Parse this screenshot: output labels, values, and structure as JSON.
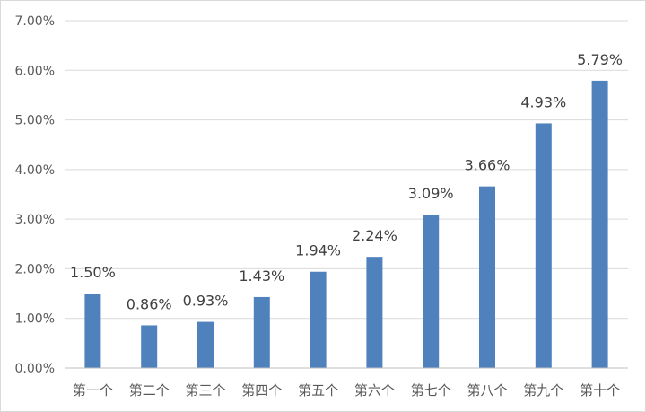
{
  "chart_data": {
    "type": "bar",
    "categories": [
      "第一个",
      "第二个",
      "第三个",
      "第四个",
      "第五个",
      "第六个",
      "第七个",
      "第八个",
      "第九个",
      "第十个"
    ],
    "values": [
      1.5,
      0.86,
      0.93,
      1.43,
      1.94,
      2.24,
      3.09,
      3.66,
      4.93,
      5.79
    ],
    "data_labels": [
      "1.50%",
      "0.86%",
      "0.93%",
      "1.43%",
      "1.94%",
      "2.24%",
      "3.09%",
      "3.66%",
      "4.93%",
      "5.79%"
    ],
    "y_ticks": [
      "0.00%",
      "1.00%",
      "2.00%",
      "3.00%",
      "4.00%",
      "5.00%",
      "6.00%",
      "7.00%"
    ],
    "ylim": [
      0,
      7
    ],
    "grid": true,
    "bar_color": "#4f81bd",
    "grid_color": "#d9d9d9",
    "title": "",
    "xlabel": "",
    "ylabel": ""
  }
}
